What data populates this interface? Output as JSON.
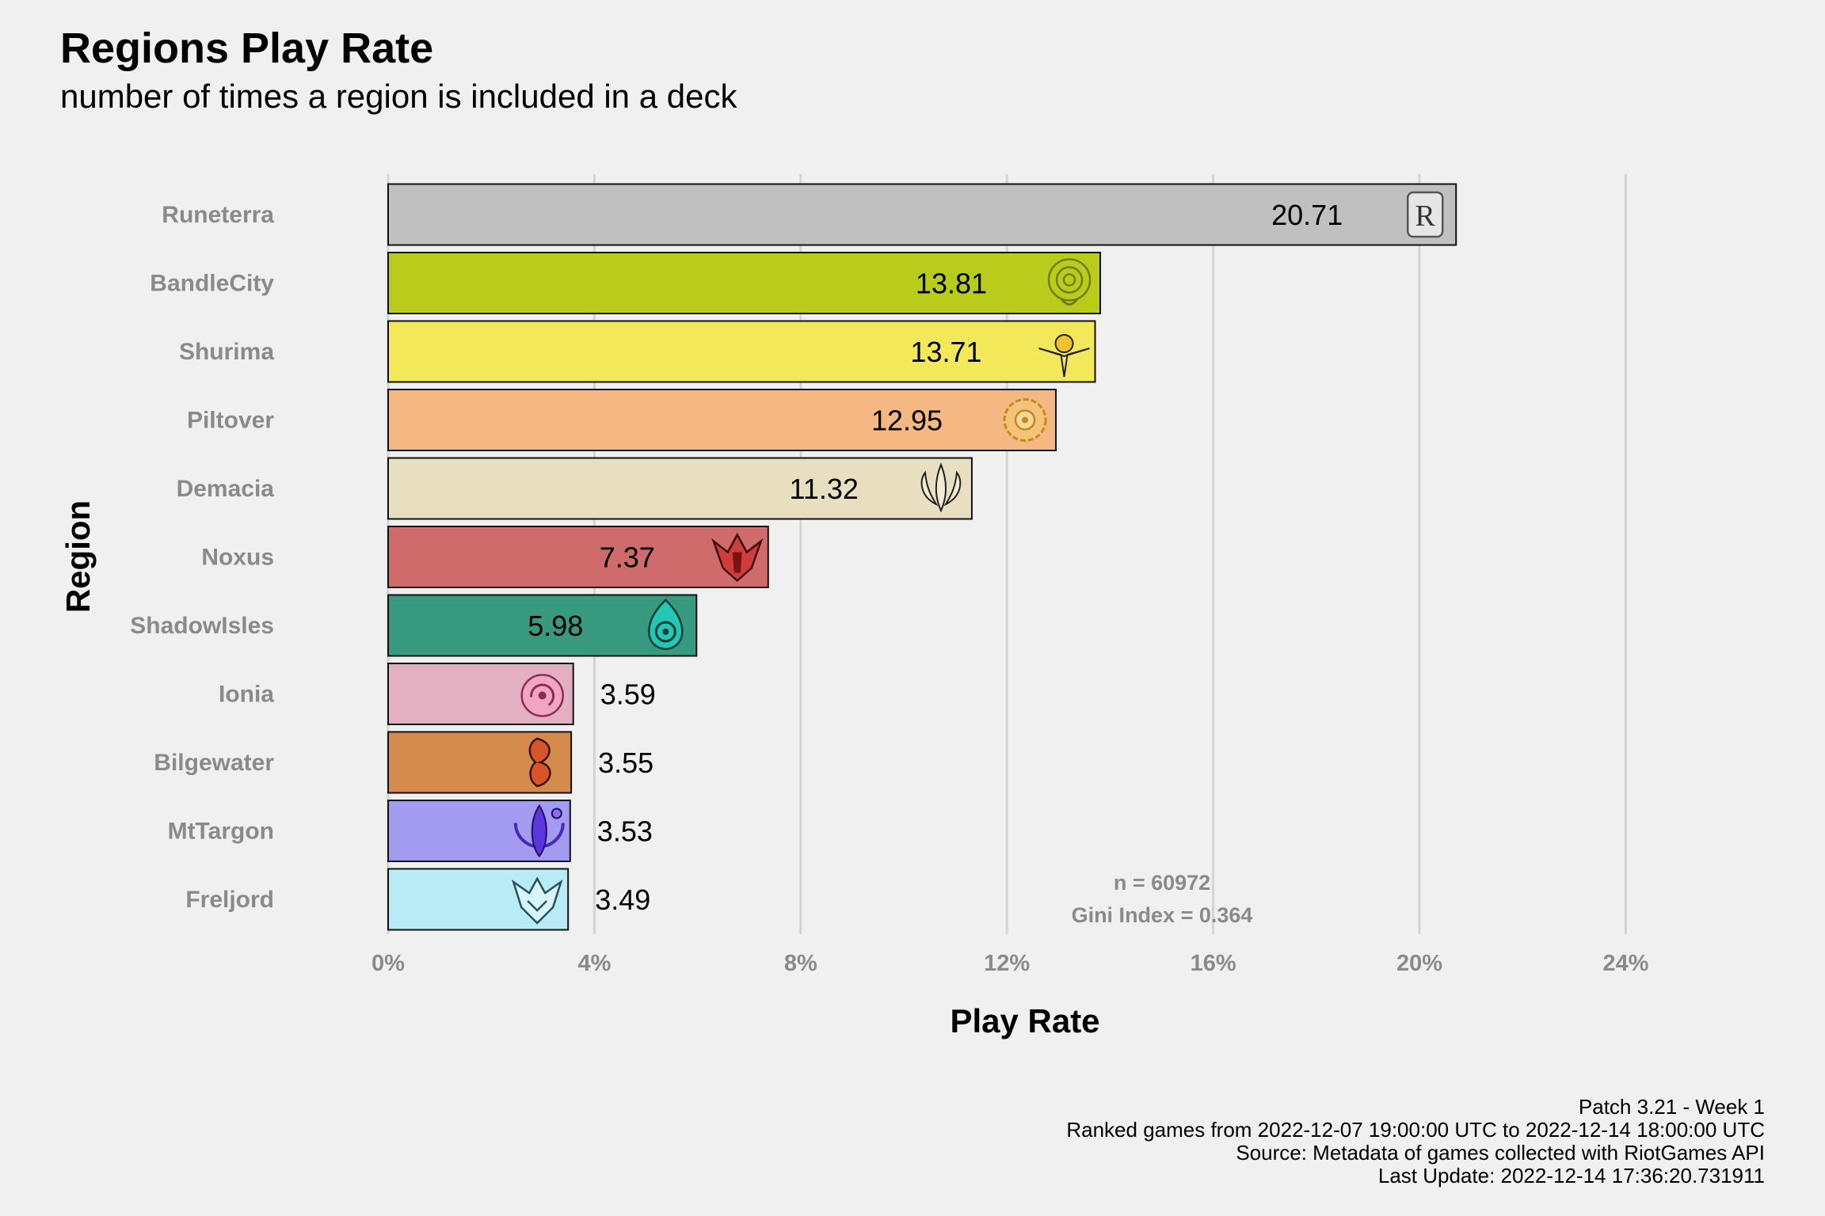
{
  "chart_data": {
    "type": "bar",
    "orientation": "horizontal",
    "title": "Regions Play Rate",
    "subtitle": "number of times a region is included in a deck",
    "xlabel": "Play Rate",
    "ylabel": "Region",
    "xlim": [
      0,
      24
    ],
    "x_ticks": [
      "0%",
      "4%",
      "8%",
      "12%",
      "16%",
      "20%",
      "24%"
    ],
    "grid": "vertical",
    "categories": [
      "Runeterra",
      "BandleCity",
      "Shurima",
      "Piltover",
      "Demacia",
      "Noxus",
      "ShadowIsles",
      "Ionia",
      "Bilgewater",
      "MtTargon",
      "Freljord"
    ],
    "values": [
      20.71,
      13.81,
      13.71,
      12.95,
      11.32,
      7.37,
      5.98,
      3.59,
      3.55,
      3.53,
      3.49
    ],
    "value_labels": [
      "20.71",
      "13.81",
      "13.71",
      "12.95",
      "11.32",
      "7.37",
      "5.98",
      "3.59",
      "3.55",
      "3.53",
      "3.49"
    ],
    "colors": [
      "#c0c0c0",
      "#b9cc1c",
      "#f2e85a",
      "#f6b883",
      "#e8dfc1",
      "#cf6b6b",
      "#379a7e",
      "#e3b0c2",
      "#d48b4c",
      "#a39bef",
      "#b9ebf7"
    ],
    "icons": [
      "runeterra-icon",
      "bandlecity-icon",
      "shurima-icon",
      "piltover-icon",
      "demacia-icon",
      "noxus-icon",
      "shadowisles-icon",
      "ionia-icon",
      "bilgewater-icon",
      "mttargon-icon",
      "freljord-icon"
    ],
    "icon_colors": [
      "#8a8a8a",
      "#6f7d10",
      "#b89a10",
      "#c9861a",
      "#8b7d5a",
      "#8e1b1b",
      "#0f5e56",
      "#c0607e",
      "#8a3b1c",
      "#5b3ad0",
      "#4a9ab3"
    ],
    "annotations": [
      "n = 60972",
      "Gini Index = 0.364"
    ]
  },
  "caption": [
    "Patch 3.21 - Week 1",
    "Ranked games from 2022-12-07 19:00:00 UTC to 2022-12-14 18:00:00 UTC",
    "Source: Metadata of games collected with RiotGames API",
    "Last Update: 2022-12-14 17:36:20.731911"
  ]
}
